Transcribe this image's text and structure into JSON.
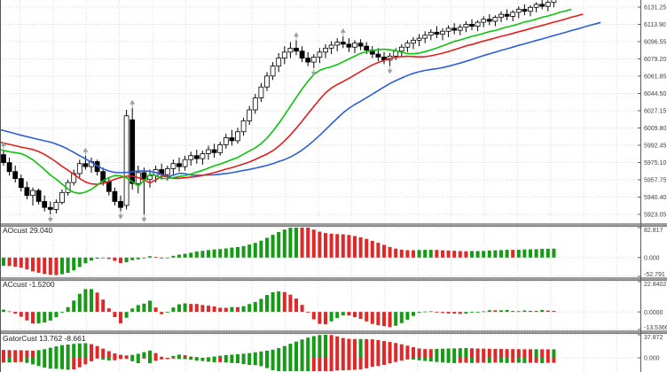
{
  "colors": {
    "background": "#ffffff",
    "grid": "#d9d9d9",
    "axis_line": "#5a5a5a",
    "axis_text": "#3f3f3f",
    "separator": "#9c9c9c",
    "separator_edge": "#7a7a7a",
    "left_border": "#555555",
    "bull_candle": "#ffffff",
    "bear_candle": "#000000",
    "candle_outline": "#000000",
    "alligator_jaw": "#2b5fd9",
    "alligator_teeth": "#e01f1f",
    "alligator_lips": "#0cc40c",
    "histogram_up": "#169b16",
    "histogram_down": "#e02828",
    "fractal": "#9aa0aa",
    "panel_label_text": "#1c1c1c"
  },
  "chart_data": {
    "type": "candlestick",
    "grid": "dotted",
    "legend_position": "none",
    "price_axis": {
      "labels": [
        {
          "text": "6131.25",
          "value": 6131.25
        },
        {
          "text": "6113.90",
          "value": 6113.9
        },
        {
          "text": "6096.55",
          "value": 6096.55
        },
        {
          "text": "6079.20",
          "value": 6079.2
        },
        {
          "text": "6061.85",
          "value": 6061.85
        },
        {
          "text": "6044.50",
          "value": 6044.5
        },
        {
          "text": "6027.15",
          "value": 6027.15
        },
        {
          "text": "6009.80",
          "value": 6009.8
        },
        {
          "text": "5992.45",
          "value": 5992.45
        },
        {
          "text": "5975.10",
          "value": 5975.1
        },
        {
          "text": "5957.75",
          "value": 5957.75
        },
        {
          "text": "5940.40",
          "value": 5940.4
        },
        {
          "text": "5923.05",
          "value": 5923.05
        }
      ],
      "top_value": 6131.25,
      "step": 17.35
    },
    "candles": {
      "visible_start": 40,
      "ohlc": [
        [
          6048,
          6052,
          6042,
          6046
        ],
        [
          6046,
          6050,
          6040,
          6044
        ],
        [
          6044,
          6047,
          6037,
          6041
        ],
        [
          6041,
          6046,
          6038,
          6043
        ],
        [
          6043,
          6045,
          6035,
          6039
        ],
        [
          6039,
          6043,
          6032,
          6036
        ],
        [
          6036,
          6041,
          6033,
          6038
        ],
        [
          6038,
          6040,
          6030,
          6034
        ],
        [
          6034,
          6037,
          6026,
          6030
        ],
        [
          6030,
          6035,
          6027,
          6032
        ],
        [
          6032,
          6034,
          6024,
          6028
        ],
        [
          6028,
          6031,
          6020,
          6024
        ],
        [
          6024,
          6029,
          6021,
          6026
        ],
        [
          6026,
          6028,
          6017,
          6021
        ],
        [
          6021,
          6025,
          6014,
          6018
        ],
        [
          6018,
          6023,
          6015,
          6020
        ],
        [
          6020,
          6022,
          6012,
          6016
        ],
        [
          6016,
          6019,
          6008,
          6012
        ],
        [
          6012,
          6017,
          6009,
          6014
        ],
        [
          6014,
          6016,
          6006,
          6010
        ],
        [
          6010,
          6013,
          6002,
          6006
        ],
        [
          6006,
          6011,
          6003,
          6008
        ],
        [
          6008,
          6010,
          6000,
          6004
        ],
        [
          6004,
          6007,
          5996,
          6000
        ],
        [
          6000,
          6005,
          5997,
          6002
        ],
        [
          6002,
          6004,
          5994,
          5998
        ],
        [
          5998,
          6001,
          5991,
          5995
        ],
        [
          5995,
          6000,
          5992,
          5997
        ],
        [
          5997,
          5999,
          5989,
          5993
        ],
        [
          5993,
          5996,
          5986,
          5990
        ],
        [
          5990,
          5995,
          5987,
          5992
        ],
        [
          5992,
          5994,
          5985,
          5989
        ],
        [
          5989,
          5992,
          5982,
          5986
        ],
        [
          5986,
          5991,
          5983,
          5988
        ],
        [
          5988,
          5990,
          5981,
          5985
        ],
        [
          5985,
          5988,
          5979,
          5983
        ],
        [
          5983,
          5988,
          5980,
          5985
        ],
        [
          5985,
          5987,
          5978,
          5982
        ],
        [
          5982,
          5985,
          5976,
          5980
        ],
        [
          5980,
          5986,
          5977,
          5983
        ],
        [
          5983,
          5988,
          5972,
          5975
        ],
        [
          5975,
          5980,
          5962,
          5966
        ],
        [
          5966,
          5972,
          5955,
          5959
        ],
        [
          5959,
          5963,
          5946,
          5950
        ],
        [
          5950,
          5956,
          5938,
          5942
        ],
        [
          5942,
          5950,
          5932,
          5947
        ],
        [
          5947,
          5949,
          5933,
          5936
        ],
        [
          5936,
          5942,
          5926,
          5930
        ],
        [
          5930,
          5936,
          5923,
          5928
        ],
        [
          5928,
          5938,
          5924,
          5935
        ],
        [
          5935,
          5948,
          5933,
          5945
        ],
        [
          5945,
          5958,
          5942,
          5955
        ],
        [
          5955,
          5968,
          5952,
          5964
        ],
        [
          5964,
          5978,
          5960,
          5974
        ],
        [
          5974,
          5982,
          5968,
          5971
        ],
        [
          5971,
          5980,
          5965,
          5976
        ],
        [
          5976,
          5978,
          5962,
          5966
        ],
        [
          5966,
          5970,
          5952,
          5956
        ],
        [
          5956,
          5960,
          5942,
          5946
        ],
        [
          5946,
          5950,
          5932,
          5936
        ],
        [
          5936,
          5942,
          5926,
          5930
        ],
        [
          5932,
          6028,
          5928,
          6022
        ],
        [
          6018,
          6030,
          5948,
          5954
        ],
        [
          5954,
          5972,
          5944,
          5965
        ],
        [
          5965,
          5970,
          5923,
          5958
        ],
        [
          5958,
          5968,
          5950,
          5962
        ],
        [
          5962,
          5972,
          5955,
          5968
        ],
        [
          5968,
          5974,
          5958,
          5963
        ],
        [
          5963,
          5972,
          5957,
          5969
        ],
        [
          5969,
          5978,
          5963,
          5974
        ],
        [
          5974,
          5980,
          5966,
          5971
        ],
        [
          5971,
          5982,
          5967,
          5978
        ],
        [
          5978,
          5986,
          5972,
          5982
        ],
        [
          5982,
          5988,
          5974,
          5979
        ],
        [
          5979,
          5987,
          5973,
          5984
        ],
        [
          5984,
          5992,
          5978,
          5988
        ],
        [
          5988,
          5994,
          5980,
          5985
        ],
        [
          5985,
          5996,
          5982,
          5993
        ],
        [
          5993,
          6004,
          5989,
          6000
        ],
        [
          6000,
          6008,
          5992,
          5997
        ],
        [
          5997,
          6010,
          5994,
          6006
        ],
        [
          6006,
          6020,
          6002,
          6017
        ],
        [
          6017,
          6032,
          6013,
          6028
        ],
        [
          6028,
          6044,
          6024,
          6040
        ],
        [
          6040,
          6055,
          6036,
          6051
        ],
        [
          6051,
          6066,
          6047,
          6062
        ],
        [
          6062,
          6076,
          6058,
          6072
        ],
        [
          6072,
          6085,
          6066,
          6080
        ],
        [
          6080,
          6092,
          6074,
          6086
        ],
        [
          6086,
          6096,
          6080,
          6090
        ],
        [
          6090,
          6098,
          6083,
          6087
        ],
        [
          6087,
          6092,
          6076,
          6080
        ],
        [
          6080,
          6086,
          6072,
          6076
        ],
        [
          6076,
          6084,
          6070,
          6081
        ],
        [
          6081,
          6090,
          6075,
          6086
        ],
        [
          6086,
          6094,
          6080,
          6090
        ],
        [
          6090,
          6097,
          6084,
          6093
        ],
        [
          6093,
          6100,
          6087,
          6096
        ],
        [
          6096,
          6102,
          6090,
          6094
        ],
        [
          6094,
          6100,
          6086,
          6091
        ],
        [
          6091,
          6098,
          6085,
          6095
        ],
        [
          6095,
          6099,
          6088,
          6092
        ],
        [
          6092,
          6096,
          6084,
          6088
        ],
        [
          6088,
          6092,
          6080,
          6084
        ],
        [
          6084,
          6090,
          6077,
          6081
        ],
        [
          6081,
          6086,
          6074,
          6078
        ],
        [
          6078,
          6085,
          6072,
          6082
        ],
        [
          6082,
          6090,
          6078,
          6087
        ],
        [
          6087,
          6094,
          6082,
          6091
        ],
        [
          6091,
          6098,
          6086,
          6095
        ],
        [
          6095,
          6101,
          6089,
          6098
        ],
        [
          6098,
          6104,
          6092,
          6100
        ],
        [
          6100,
          6107,
          6095,
          6103
        ],
        [
          6103,
          6109,
          6098,
          6106
        ],
        [
          6106,
          6112,
          6100,
          6104
        ],
        [
          6104,
          6110,
          6098,
          6107
        ],
        [
          6107,
          6113,
          6101,
          6110
        ],
        [
          6110,
          6115,
          6104,
          6108
        ],
        [
          6108,
          6114,
          6103,
          6111
        ],
        [
          6111,
          6117,
          6106,
          6114
        ],
        [
          6114,
          6119,
          6108,
          6112
        ],
        [
          6112,
          6118,
          6107,
          6116
        ],
        [
          6116,
          6122,
          6111,
          6119
        ],
        [
          6119,
          6124,
          6113,
          6117
        ],
        [
          6117,
          6123,
          6112,
          6121
        ],
        [
          6121,
          6127,
          6116,
          6124
        ],
        [
          6124,
          6129,
          6118,
          6122
        ],
        [
          6122,
          6128,
          6117,
          6126
        ],
        [
          6126,
          6132,
          6120,
          6129
        ],
        [
          6129,
          6134,
          6123,
          6127
        ],
        [
          6127,
          6133,
          6122,
          6131
        ],
        [
          6131,
          6136,
          6126,
          6134
        ],
        [
          6134,
          6139,
          6129,
          6132
        ],
        [
          6132,
          6138,
          6127,
          6136
        ],
        [
          6136,
          6141,
          6131,
          6139
        ]
      ]
    },
    "overlays": {
      "alligator": {
        "jaw": {
          "period": 13,
          "shift": 8,
          "color_key": "alligator_jaw"
        },
        "teeth": {
          "period": 8,
          "shift": 5,
          "color_key": "alligator_teeth"
        },
        "lips": {
          "period": 5,
          "shift": 3,
          "color_key": "alligator_lips"
        }
      },
      "fractals": true
    },
    "panels": [
      {
        "id": "ao",
        "label": "AOcust 29.040",
        "name": "AOcust",
        "current_value": "29.040",
        "indicator": "ao",
        "range": [
          82.817,
          -52.791
        ],
        "axis_labels": [
          {
            "text": "82.817",
            "value": 82.817
          },
          {
            "text": "0.000",
            "value": 0
          },
          {
            "text": "-52.791",
            "value": -52.791
          }
        ]
      },
      {
        "id": "ac",
        "label": "ACcust -1.5200",
        "name": "ACcust",
        "current_value": "-1.5200",
        "indicator": "ac",
        "range": [
          22.8402,
          -13.5366
        ],
        "axis_labels": [
          {
            "text": "22.8402",
            "value": 22.8402
          },
          {
            "text": "0.0000",
            "value": 0
          },
          {
            "text": "-13.5366",
            "value": -13.5366
          }
        ]
      },
      {
        "id": "gator",
        "label": "GatorCust 13.762 -8.661",
        "name": "GatorCust",
        "current_value": "13.762 -8.661",
        "indicator": "gator",
        "range": [
          37.872,
          -22.4
        ],
        "axis_labels": [
          {
            "text": "37.872",
            "value": 37.872
          },
          {
            "text": "0.000",
            "value": 0
          }
        ]
      }
    ]
  }
}
